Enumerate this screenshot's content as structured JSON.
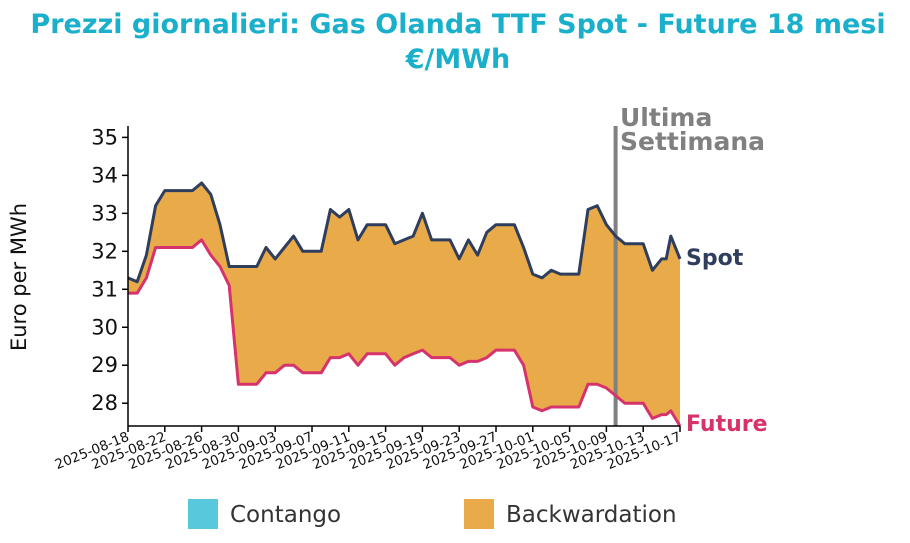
{
  "chart_data": {
    "type": "area",
    "title": "Prezzi giornalieri: Gas Olanda TTF Spot - Future 18 mesi",
    "subtitle": "€/MWh",
    "xlabel": "",
    "ylabel": "Euro per MWh",
    "ylim": [
      27.4,
      35.3
    ],
    "yticks": [
      28,
      29,
      30,
      31,
      32,
      33,
      34,
      35
    ],
    "xlim": [
      "2025-08-18",
      "2025-10-17"
    ],
    "xticks": [
      "2025-08-18",
      "2025-08-22",
      "2025-08-26",
      "2025-08-30",
      "2025-09-03",
      "2025-09-07",
      "2025-09-11",
      "2025-09-15",
      "2025-09-19",
      "2025-09-23",
      "2025-09-27",
      "2025-10-01",
      "2025-10-05",
      "2025-10-09",
      "2025-10-13",
      "2025-10-17"
    ],
    "grid": false,
    "legend_position": "bottom",
    "series": [
      {
        "name": "Spot",
        "color": "#2e3e5c",
        "points": [
          [
            "2025-08-18",
            31.3
          ],
          [
            "2025-08-19",
            31.2
          ],
          [
            "2025-08-20",
            31.9
          ],
          [
            "2025-08-21",
            33.2
          ],
          [
            "2025-08-22",
            33.6
          ],
          [
            "2025-08-25",
            33.6
          ],
          [
            "2025-08-26",
            33.8
          ],
          [
            "2025-08-27",
            33.5
          ],
          [
            "2025-08-28",
            32.7
          ],
          [
            "2025-08-29",
            31.6
          ],
          [
            "2025-09-01",
            31.6
          ],
          [
            "2025-09-02",
            32.1
          ],
          [
            "2025-09-03",
            31.8
          ],
          [
            "2025-09-04",
            32.1
          ],
          [
            "2025-09-05",
            32.4
          ],
          [
            "2025-09-06",
            32.0
          ],
          [
            "2025-09-08",
            32.0
          ],
          [
            "2025-09-09",
            33.1
          ],
          [
            "2025-09-10",
            32.9
          ],
          [
            "2025-09-11",
            33.1
          ],
          [
            "2025-09-12",
            32.3
          ],
          [
            "2025-09-13",
            32.7
          ],
          [
            "2025-09-15",
            32.7
          ],
          [
            "2025-09-16",
            32.2
          ],
          [
            "2025-09-17",
            32.3
          ],
          [
            "2025-09-18",
            32.4
          ],
          [
            "2025-09-19",
            33.0
          ],
          [
            "2025-09-20",
            32.3
          ],
          [
            "2025-09-22",
            32.3
          ],
          [
            "2025-09-23",
            31.8
          ],
          [
            "2025-09-24",
            32.3
          ],
          [
            "2025-09-25",
            31.9
          ],
          [
            "2025-09-26",
            32.5
          ],
          [
            "2025-09-27",
            32.7
          ],
          [
            "2025-09-29",
            32.7
          ],
          [
            "2025-09-30",
            32.1
          ],
          [
            "2025-10-01",
            31.4
          ],
          [
            "2025-10-02",
            31.3
          ],
          [
            "2025-10-03",
            31.5
          ],
          [
            "2025-10-04",
            31.4
          ],
          [
            "2025-10-06",
            31.4
          ],
          [
            "2025-10-07",
            33.1
          ],
          [
            "2025-10-08",
            33.2
          ],
          [
            "2025-10-09",
            32.7
          ],
          [
            "2025-10-10",
            32.4
          ],
          [
            "2025-10-11",
            32.2
          ],
          [
            "2025-10-13",
            32.2
          ],
          [
            "2025-10-14",
            31.5
          ],
          [
            "2025-10-15",
            31.8
          ],
          [
            "2025-10-15T12",
            31.8
          ],
          [
            "2025-10-16",
            32.4
          ],
          [
            "2025-10-17",
            31.8
          ]
        ]
      },
      {
        "name": "Future",
        "color": "#d6336c",
        "points": [
          [
            "2025-08-18",
            30.9
          ],
          [
            "2025-08-19",
            30.9
          ],
          [
            "2025-08-20",
            31.3
          ],
          [
            "2025-08-21",
            32.1
          ],
          [
            "2025-08-22",
            32.1
          ],
          [
            "2025-08-25",
            32.1
          ],
          [
            "2025-08-26",
            32.3
          ],
          [
            "2025-08-27",
            31.9
          ],
          [
            "2025-08-28",
            31.6
          ],
          [
            "2025-08-29",
            31.1
          ],
          [
            "2025-08-30",
            28.5
          ],
          [
            "2025-09-01",
            28.5
          ],
          [
            "2025-09-02",
            28.8
          ],
          [
            "2025-09-03",
            28.8
          ],
          [
            "2025-09-04",
            29.0
          ],
          [
            "2025-09-05",
            29.0
          ],
          [
            "2025-09-06",
            28.8
          ],
          [
            "2025-09-08",
            28.8
          ],
          [
            "2025-09-09",
            29.2
          ],
          [
            "2025-09-10",
            29.2
          ],
          [
            "2025-09-11",
            29.3
          ],
          [
            "2025-09-12",
            29.0
          ],
          [
            "2025-09-13",
            29.3
          ],
          [
            "2025-09-15",
            29.3
          ],
          [
            "2025-09-16",
            29.0
          ],
          [
            "2025-09-17",
            29.2
          ],
          [
            "2025-09-18",
            29.3
          ],
          [
            "2025-09-19",
            29.4
          ],
          [
            "2025-09-20",
            29.2
          ],
          [
            "2025-09-22",
            29.2
          ],
          [
            "2025-09-23",
            29.0
          ],
          [
            "2025-09-24",
            29.1
          ],
          [
            "2025-09-25",
            29.1
          ],
          [
            "2025-09-26",
            29.2
          ],
          [
            "2025-09-27",
            29.4
          ],
          [
            "2025-09-29",
            29.4
          ],
          [
            "2025-09-30",
            29.0
          ],
          [
            "2025-10-01",
            27.9
          ],
          [
            "2025-10-02",
            27.8
          ],
          [
            "2025-10-03",
            27.9
          ],
          [
            "2025-10-04",
            27.9
          ],
          [
            "2025-10-06",
            27.9
          ],
          [
            "2025-10-07",
            28.5
          ],
          [
            "2025-10-08",
            28.5
          ],
          [
            "2025-10-09",
            28.4
          ],
          [
            "2025-10-10",
            28.2
          ],
          [
            "2025-10-11",
            28.0
          ],
          [
            "2025-10-13",
            28.0
          ],
          [
            "2025-10-14",
            27.6
          ],
          [
            "2025-10-15",
            27.7
          ],
          [
            "2025-10-15T12",
            27.7
          ],
          [
            "2025-10-16",
            27.8
          ],
          [
            "2025-10-17",
            27.4
          ]
        ]
      }
    ],
    "vertical_line": {
      "x": "2025-10-10",
      "label_line1": "Ultima",
      "label_line2": "Settimana",
      "color": "#808080"
    },
    "legend": [
      {
        "label": "Contango",
        "color": "#58c9dc"
      },
      {
        "label": "Backwardation",
        "color": "#e9ab4a"
      }
    ]
  }
}
